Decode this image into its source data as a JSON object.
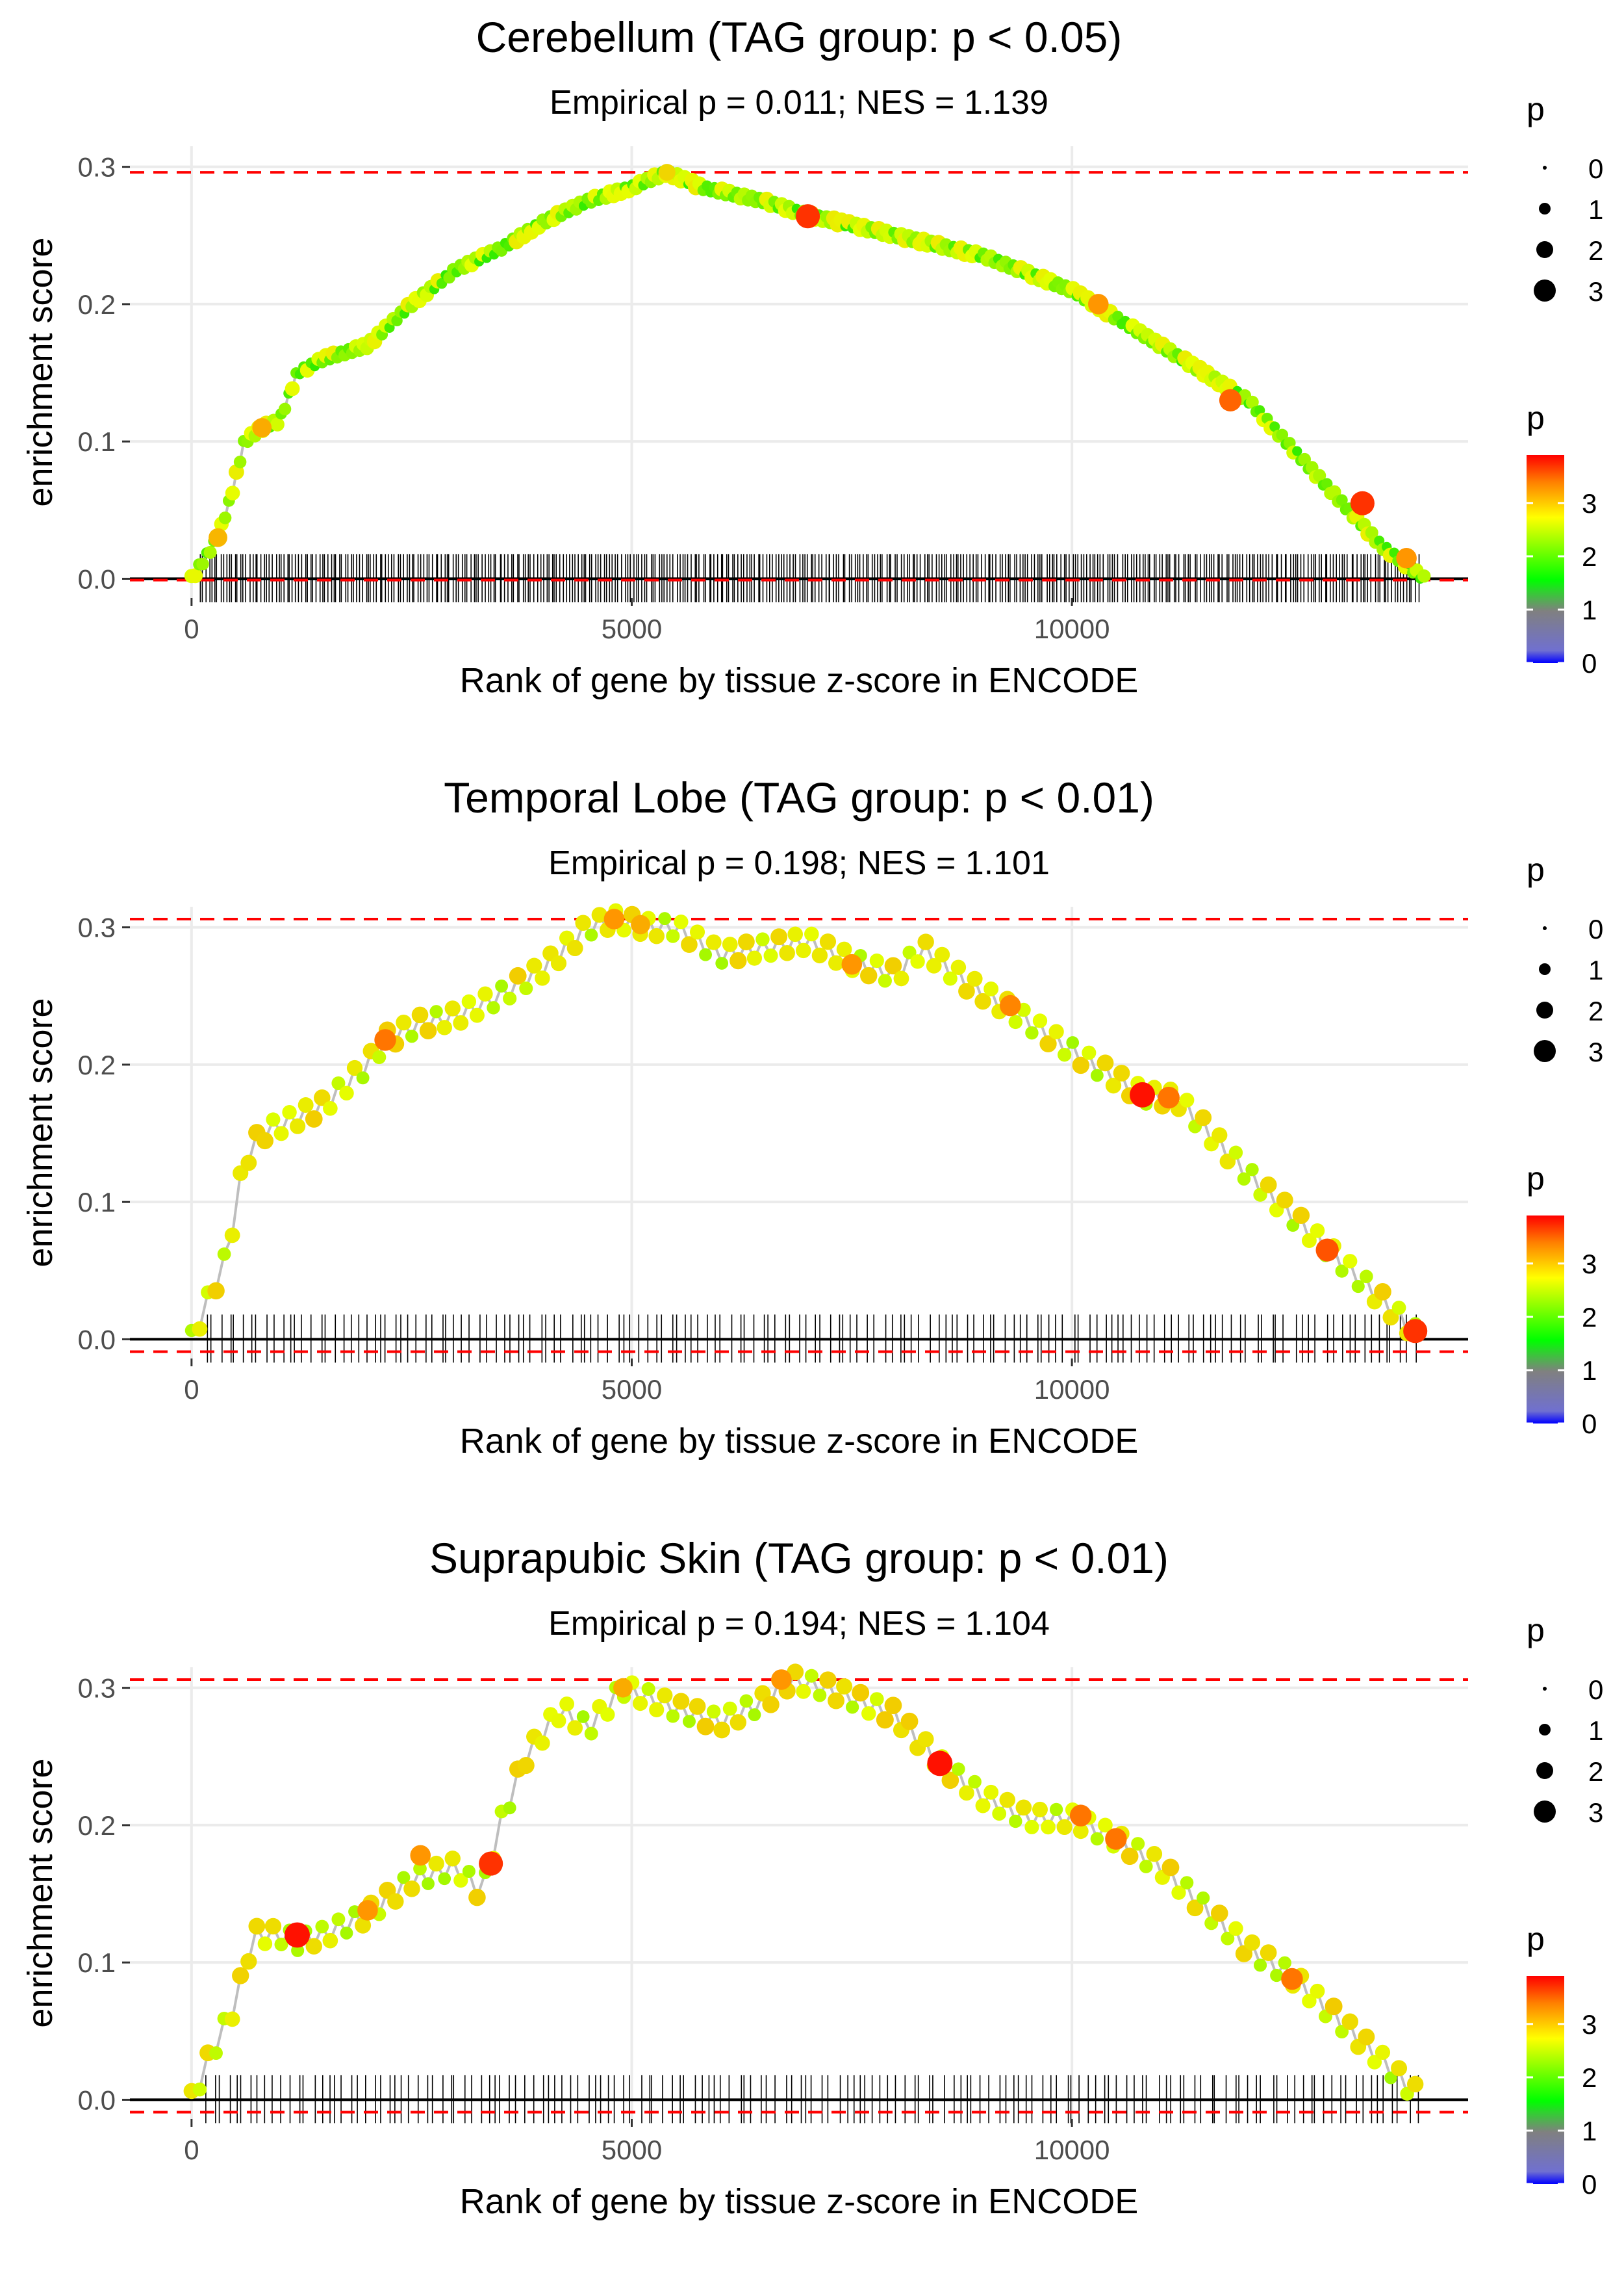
{
  "chart_data": [
    {
      "type": "line",
      "title": "Cerebellum (TAG group: p < 0.05)",
      "subtitle": "Empirical p = 0.011; NES = 1.139",
      "xlabel": "Rank of gene by tissue z-score in ENCODE",
      "ylabel": "enrichment score",
      "xlim": [
        -700,
        14500
      ],
      "ylim": [
        -0.014,
        0.315
      ],
      "x_ticks": [
        0,
        5000,
        10000
      ],
      "x_tick_labels": [
        "0",
        "5000",
        "10000"
      ],
      "y_ticks": [
        0.0,
        0.1,
        0.2,
        0.3
      ],
      "y_tick_labels": [
        "0.0",
        "0.1",
        "0.2",
        "0.3"
      ],
      "grid": true,
      "max_es": 0.296,
      "min_es": -0.001,
      "n_points": 330,
      "curve": [
        [
          0,
          0
        ],
        [
          300,
          0.03
        ],
        [
          450,
          0.06
        ],
        [
          600,
          0.1
        ],
        [
          800,
          0.11
        ],
        [
          1000,
          0.115
        ],
        [
          1200,
          0.15
        ],
        [
          1500,
          0.16
        ],
        [
          2000,
          0.17
        ],
        [
          2500,
          0.2
        ],
        [
          3000,
          0.225
        ],
        [
          3500,
          0.24
        ],
        [
          4000,
          0.26
        ],
        [
          4500,
          0.275
        ],
        [
          5000,
          0.285
        ],
        [
          5400,
          0.296
        ],
        [
          5800,
          0.285
        ],
        [
          6500,
          0.275
        ],
        [
          7000,
          0.265
        ],
        [
          8000,
          0.25
        ],
        [
          9000,
          0.235
        ],
        [
          10000,
          0.21
        ],
        [
          11000,
          0.17
        ],
        [
          12000,
          0.13
        ],
        [
          13000,
          0.06
        ],
        [
          13500,
          0.025
        ],
        [
          14000,
          0
        ]
      ],
      "highlights": [
        [
          300,
          0.03,
          2.7
        ],
        [
          800,
          0.11,
          2.8
        ],
        [
          5400,
          0.296,
          2.4
        ],
        [
          7000,
          0.264,
          3.6
        ],
        [
          10300,
          0.2,
          3.0
        ],
        [
          11800,
          0.13,
          3.3
        ],
        [
          13300,
          0.055,
          3.6
        ],
        [
          13800,
          0.015,
          3.0
        ]
      ],
      "rug": {
        "n": 420,
        "start": 80,
        "end": 13950
      },
      "size_legend": {
        "title": "p",
        "labels": [
          "0",
          "1",
          "2",
          "3"
        ]
      },
      "color_legend": {
        "title": "p",
        "labels": [
          "3",
          "2",
          "1",
          "0"
        ]
      }
    },
    {
      "type": "line",
      "title": "Temporal Lobe (TAG group: p < 0.01)",
      "subtitle": "Empirical p = 0.198; NES = 1.101",
      "xlabel": "Rank of gene by tissue z-score in ENCODE",
      "ylabel": "enrichment score",
      "xlim": [
        -700,
        14500
      ],
      "ylim": [
        -0.014,
        0.315
      ],
      "x_ticks": [
        0,
        5000,
        10000
      ],
      "x_tick_labels": [
        "0",
        "5000",
        "10000"
      ],
      "y_ticks": [
        0.0,
        0.1,
        0.2,
        0.3
      ],
      "y_tick_labels": [
        "0.0",
        "0.1",
        "0.2",
        "0.3"
      ],
      "grid": true,
      "max_es": 0.306,
      "min_es": -0.009,
      "n_points": 150,
      "curve": [
        [
          0,
          0
        ],
        [
          200,
          0.03
        ],
        [
          400,
          0.06
        ],
        [
          600,
          0.13
        ],
        [
          800,
          0.15
        ],
        [
          1500,
          0.17
        ],
        [
          2000,
          0.2
        ],
        [
          2200,
          0.218
        ],
        [
          2600,
          0.23
        ],
        [
          3000,
          0.235
        ],
        [
          3500,
          0.25
        ],
        [
          4000,
          0.27
        ],
        [
          4500,
          0.3
        ],
        [
          4800,
          0.306
        ],
        [
          5200,
          0.3
        ],
        [
          5500,
          0.3
        ],
        [
          6000,
          0.28
        ],
        [
          6500,
          0.285
        ],
        [
          7000,
          0.29
        ],
        [
          7500,
          0.275
        ],
        [
          8000,
          0.265
        ],
        [
          8300,
          0.285
        ],
        [
          8800,
          0.26
        ],
        [
          9300,
          0.24
        ],
        [
          10000,
          0.21
        ],
        [
          10800,
          0.178
        ],
        [
          11200,
          0.175
        ],
        [
          12000,
          0.12
        ],
        [
          12500,
          0.09
        ],
        [
          13000,
          0.06
        ],
        [
          13500,
          0.03
        ],
        [
          13900,
          0.005
        ]
      ],
      "highlights": [
        [
          2200,
          0.218,
          3.2
        ],
        [
          4800,
          0.306,
          3.0
        ],
        [
          5100,
          0.302,
          2.8
        ],
        [
          7500,
          0.273,
          3.0
        ],
        [
          9300,
          0.243,
          3.1
        ],
        [
          10800,
          0.178,
          3.8
        ],
        [
          11100,
          0.176,
          3.2
        ],
        [
          12900,
          0.065,
          3.4
        ],
        [
          13900,
          0.006,
          3.6
        ]
      ],
      "rug": {
        "n": 160,
        "start": 120,
        "end": 13950
      },
      "size_legend": {
        "title": "p",
        "labels": [
          "0",
          "1",
          "2",
          "3"
        ]
      },
      "color_legend": {
        "title": "p",
        "labels": [
          "3",
          "2",
          "1",
          "0"
        ]
      }
    },
    {
      "type": "line",
      "title": "Suprapubic Skin (TAG group: p < 0.01)",
      "subtitle": "Empirical p = 0.194; NES = 1.104",
      "xlabel": "Rank of gene by tissue z-score in ENCODE",
      "ylabel": "enrichment score",
      "xlim": [
        -700,
        14500
      ],
      "ylim": [
        -0.014,
        0.315
      ],
      "x_ticks": [
        0,
        5000,
        10000
      ],
      "x_tick_labels": [
        "0",
        "5000",
        "10000"
      ],
      "y_ticks": [
        0.0,
        0.1,
        0.2,
        0.3
      ],
      "y_tick_labels": [
        "0.0",
        "0.1",
        "0.2",
        "0.3"
      ],
      "grid": true,
      "max_es": 0.306,
      "min_es": -0.009,
      "n_points": 150,
      "curve": [
        [
          0,
          0
        ],
        [
          200,
          0.03
        ],
        [
          500,
          0.07
        ],
        [
          700,
          0.12
        ],
        [
          1000,
          0.12
        ],
        [
          1200,
          0.115
        ],
        [
          1500,
          0.12
        ],
        [
          2000,
          0.135
        ],
        [
          2500,
          0.16
        ],
        [
          3000,
          0.17
        ],
        [
          3300,
          0.15
        ],
        [
          3500,
          0.2
        ],
        [
          3800,
          0.25
        ],
        [
          4200,
          0.285
        ],
        [
          4500,
          0.27
        ],
        [
          4900,
          0.3
        ],
        [
          5500,
          0.285
        ],
        [
          6000,
          0.275
        ],
        [
          6500,
          0.29
        ],
        [
          6800,
          0.306
        ],
        [
          7200,
          0.3
        ],
        [
          8000,
          0.28
        ],
        [
          8500,
          0.245
        ],
        [
          9000,
          0.22
        ],
        [
          9500,
          0.205
        ],
        [
          10000,
          0.205
        ],
        [
          10500,
          0.19
        ],
        [
          11000,
          0.17
        ],
        [
          11500,
          0.14
        ],
        [
          12000,
          0.11
        ],
        [
          12500,
          0.09
        ],
        [
          13000,
          0.06
        ],
        [
          13500,
          0.03
        ],
        [
          13900,
          0.005
        ]
      ],
      "highlights": [
        [
          1200,
          0.12,
          3.8
        ],
        [
          2000,
          0.138,
          3.0
        ],
        [
          2600,
          0.178,
          3.0
        ],
        [
          3400,
          0.172,
          3.6
        ],
        [
          4900,
          0.3,
          2.8
        ],
        [
          6700,
          0.306,
          3.0
        ],
        [
          8500,
          0.245,
          3.8
        ],
        [
          10100,
          0.207,
          3.2
        ],
        [
          10500,
          0.19,
          3.2
        ],
        [
          12500,
          0.088,
          3.2
        ]
      ],
      "rug": {
        "n": 160,
        "start": 120,
        "end": 13950
      },
      "size_legend": {
        "title": "p",
        "labels": [
          "0",
          "1",
          "2",
          "3"
        ]
      },
      "color_legend": {
        "title": "p",
        "labels": [
          "3",
          "2",
          "1",
          "0"
        ]
      }
    }
  ],
  "colors": {
    "grid": "#ebebeb",
    "ref_line": "#ff0000",
    "curve_line": "#bebebe",
    "axis_line": "#000000",
    "text": "#000000",
    "tick_text": "#4d4d4d",
    "gradient": [
      "#0000ff",
      "#8080c0",
      "#00ff00",
      "#ffff00",
      "#ff8000",
      "#ff0000"
    ]
  }
}
